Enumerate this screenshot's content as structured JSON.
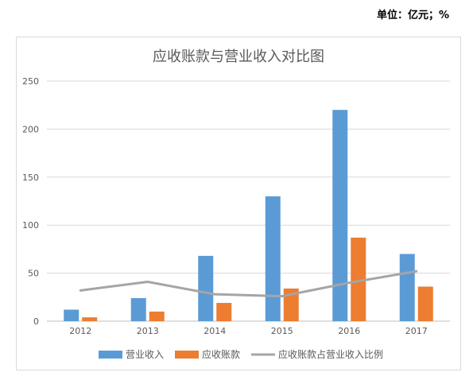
{
  "unit_note": "单位：亿元；%",
  "chart_data": {
    "type": "bar",
    "title": "应收账款与营业收入对比图",
    "categories": [
      "2012",
      "2013",
      "2014",
      "2015",
      "2016",
      "2017"
    ],
    "ylim": [
      0,
      250
    ],
    "yticks": [
      0,
      50,
      100,
      150,
      200,
      250
    ],
    "grid": true,
    "legend_position": "bottom",
    "series": [
      {
        "name": "营业收入",
        "kind": "bar",
        "color": "#5b9bd5",
        "values": [
          12,
          24,
          68,
          130,
          220,
          70
        ]
      },
      {
        "name": "应收账款",
        "kind": "bar",
        "color": "#ed7d31",
        "values": [
          4,
          10,
          19,
          34,
          87,
          36
        ]
      },
      {
        "name": "应收账款占营业收入比例",
        "kind": "line",
        "color": "#a5a5a5",
        "values": [
          32,
          41,
          28,
          26,
          40,
          52
        ]
      }
    ]
  }
}
